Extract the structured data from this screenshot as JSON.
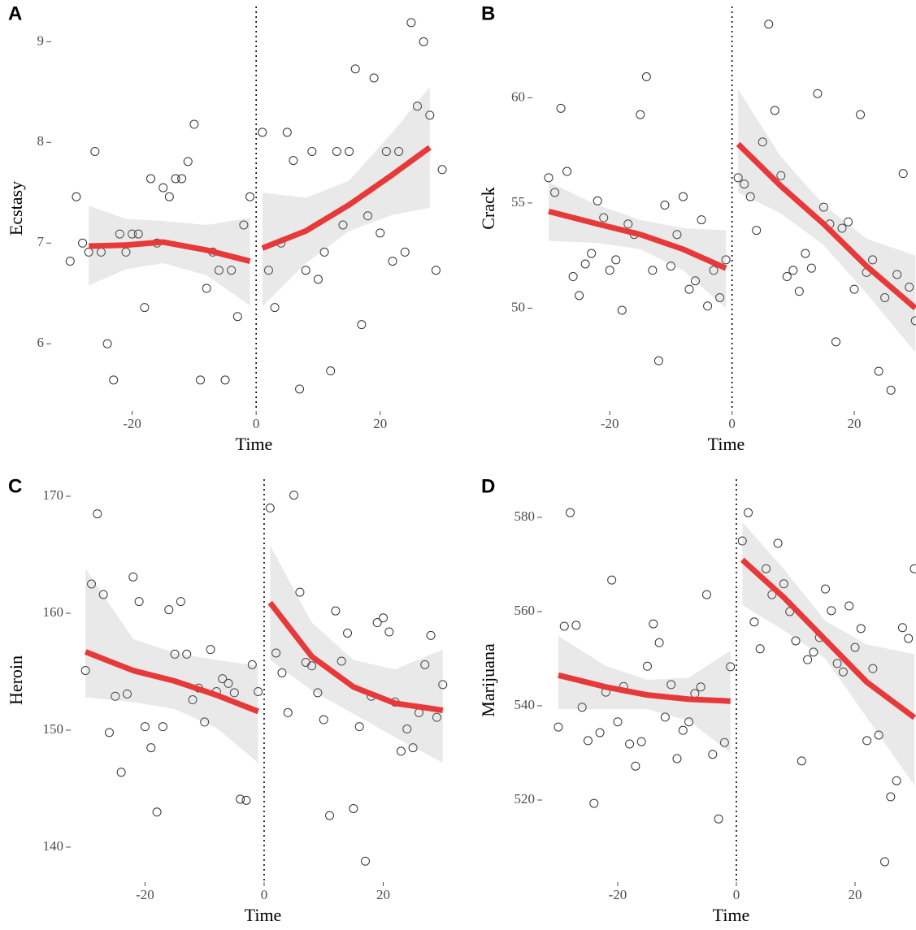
{
  "chart_data": [
    {
      "type": "scatter",
      "panel_label": "A",
      "ylabel": "Ecstasy",
      "xlabel": "Time",
      "x": [
        -30,
        -29,
        -28,
        -27,
        -26,
        -25,
        -24,
        -23,
        -22,
        -21,
        -20,
        -19,
        -18,
        -17,
        -16,
        -15,
        -14,
        -13,
        -12,
        -11,
        -10,
        -9,
        -8,
        -7,
        -6,
        -5,
        -4,
        -3,
        -2,
        -1,
        1,
        2,
        3,
        4,
        5,
        6,
        7,
        8,
        9,
        10,
        11,
        12,
        13,
        14,
        15,
        16,
        17,
        18,
        19,
        20,
        21,
        22,
        23,
        24,
        25,
        26,
        27,
        28,
        29,
        30
      ],
      "values": [
        6.82,
        7.46,
        7.0,
        6.91,
        7.91,
        6.91,
        6.0,
        5.64,
        7.09,
        6.91,
        7.09,
        7.09,
        6.36,
        7.64,
        7.0,
        7.55,
        7.46,
        7.64,
        7.64,
        7.81,
        8.18,
        5.64,
        6.55,
        6.91,
        6.73,
        5.64,
        6.73,
        6.27,
        7.18,
        7.46,
        8.1,
        6.73,
        6.36,
        7.0,
        8.1,
        7.82,
        5.55,
        6.73,
        7.91,
        6.64,
        6.91,
        5.73,
        7.91,
        7.18,
        7.91,
        8.73,
        6.19,
        7.27,
        8.64,
        7.1,
        7.91,
        6.82,
        7.91,
        6.91,
        9.19,
        8.36,
        9.0,
        8.27,
        6.73,
        7.73
      ],
      "fits": [
        {
          "x": [
            -27,
            -21,
            -15,
            -8,
            -1
          ],
          "values": [
            6.97,
            6.98,
            7.01,
            6.93,
            6.82
          ],
          "upper": [
            7.37,
            7.24,
            7.22,
            7.18,
            7.25
          ],
          "lower": [
            6.58,
            6.74,
            6.8,
            6.68,
            6.38
          ]
        },
        {
          "x": [
            1,
            8,
            15,
            22,
            28
          ],
          "values": [
            6.95,
            7.12,
            7.38,
            7.68,
            7.95
          ],
          "upper": [
            7.5,
            7.45,
            7.62,
            8.1,
            8.55
          ],
          "lower": [
            6.37,
            6.8,
            7.12,
            7.28,
            7.35
          ]
        }
      ],
      "xlim": [
        -32.4,
        31.7
      ],
      "ylim": [
        5.34,
        9.35
      ],
      "xticks": [
        -20,
        0,
        20
      ],
      "yticks": [
        6,
        7,
        8,
        9
      ],
      "vline": 0,
      "point_color": "#333333",
      "fit_color": "#e8393a"
    },
    {
      "type": "scatter",
      "panel_label": "B",
      "ylabel": "Crack",
      "xlabel": "Time",
      "x": [
        -30,
        -29,
        -28,
        -27,
        -26,
        -25,
        -24,
        -23,
        -22,
        -21,
        -20,
        -19,
        -18,
        -17,
        -16,
        -15,
        -14,
        -13,
        -12,
        -11,
        -10,
        -9,
        -8,
        -7,
        -6,
        -5,
        -4,
        -3,
        -2,
        -1,
        1,
        2,
        3,
        4,
        5,
        6,
        7,
        8,
        9,
        10,
        11,
        12,
        13,
        14,
        15,
        16,
        17,
        18,
        19,
        20,
        21,
        22,
        23,
        24,
        25,
        26,
        27,
        28,
        29,
        30
      ],
      "values": [
        56.2,
        55.5,
        59.5,
        56.5,
        51.5,
        50.6,
        52.1,
        52.6,
        55.1,
        54.3,
        51.8,
        52.3,
        49.9,
        54.0,
        53.5,
        59.2,
        61.0,
        51.8,
        47.5,
        54.9,
        52.0,
        53.5,
        55.3,
        50.9,
        51.3,
        54.2,
        50.1,
        51.8,
        50.5,
        52.3,
        56.2,
        55.9,
        55.3,
        53.7,
        57.9,
        63.5,
        59.4,
        56.3,
        51.5,
        51.8,
        50.8,
        52.6,
        51.9,
        60.2,
        54.8,
        54.0,
        48.4,
        53.8,
        54.1,
        50.9,
        59.2,
        51.7,
        52.3,
        47.0,
        50.5,
        46.1,
        51.6,
        56.4,
        51.0,
        49.4
      ],
      "fits": [
        {
          "x": [
            -30,
            -22,
            -15,
            -8,
            -1
          ],
          "values": [
            54.6,
            54.0,
            53.5,
            52.8,
            51.9
          ],
          "upper": [
            56.0,
            54.9,
            54.2,
            53.8,
            53.7
          ],
          "lower": [
            53.2,
            53.1,
            52.8,
            51.8,
            50.0
          ]
        },
        {
          "x": [
            1,
            8,
            15,
            22,
            30
          ],
          "values": [
            57.8,
            55.8,
            54.0,
            52.0,
            50.0
          ],
          "upper": [
            60.4,
            57.2,
            54.9,
            53.3,
            52.5
          ],
          "lower": [
            55.5,
            54.5,
            53.0,
            50.7,
            47.9
          ]
        }
      ],
      "xlim": [
        -32.0,
        30.1
      ],
      "ylim": [
        45.15,
        64.34
      ],
      "xticks": [
        -20,
        0,
        20
      ],
      "yticks": [
        50,
        55,
        60
      ],
      "vline": 0,
      "point_color": "#333333",
      "fit_color": "#e8393a"
    },
    {
      "type": "scatter",
      "panel_label": "C",
      "ylabel": "Heroin",
      "xlabel": "Time",
      "x": [
        -30,
        -29,
        -28,
        -27,
        -26,
        -25,
        -24,
        -23,
        -22,
        -21,
        -20,
        -19,
        -18,
        -17,
        -16,
        -15,
        -14,
        -13,
        -12,
        -11,
        -10,
        -9,
        -8,
        -7,
        -6,
        -5,
        -4,
        -3,
        -2,
        -1,
        1,
        2,
        3,
        4,
        5,
        6,
        7,
        8,
        9,
        10,
        11,
        12,
        13,
        14,
        15,
        16,
        17,
        18,
        19,
        20,
        21,
        22,
        23,
        24,
        25,
        26,
        27,
        28,
        29,
        30
      ],
      "values": [
        155.1,
        162.5,
        168.5,
        161.6,
        149.8,
        152.9,
        146.4,
        153.1,
        163.1,
        161.0,
        150.3,
        148.5,
        143.0,
        150.3,
        160.3,
        156.5,
        161.0,
        156.5,
        152.6,
        153.6,
        150.7,
        156.9,
        153.3,
        154.4,
        154.0,
        153.2,
        144.1,
        144.0,
        155.6,
        153.3,
        169.0,
        156.6,
        154.9,
        151.5,
        170.1,
        161.8,
        155.8,
        155.5,
        153.2,
        150.9,
        142.7,
        160.2,
        155.9,
        158.3,
        143.3,
        150.3,
        138.8,
        152.9,
        159.2,
        159.6,
        158.4,
        152.4,
        148.2,
        150.1,
        148.5,
        151.5,
        155.6,
        158.1,
        151.1,
        153.9
      ],
      "fits": [
        {
          "x": [
            -30,
            -22,
            -15,
            -8,
            -1
          ],
          "values": [
            156.7,
            155.1,
            154.2,
            153.0,
            151.6
          ],
          "upper": [
            163.8,
            157.8,
            156.6,
            156.0,
            155.5
          ],
          "lower": [
            152.8,
            152.4,
            151.8,
            150.2,
            147.2
          ]
        },
        {
          "x": [
            1,
            8,
            15,
            22,
            30
          ],
          "values": [
            160.9,
            156.3,
            153.7,
            152.3,
            151.7
          ],
          "upper": [
            165.8,
            159.2,
            156.0,
            155.2,
            156.9
          ],
          "lower": [
            156.0,
            153.4,
            151.4,
            149.4,
            147.2
          ]
        }
      ],
      "xlim": [
        -31.8,
        31.4
      ],
      "ylim": [
        137.08,
        171.46
      ],
      "xticks": [
        -20,
        0,
        20
      ],
      "yticks": [
        140,
        150,
        160,
        170
      ],
      "vline": 0,
      "point_color": "#333333",
      "fit_color": "#e8393a"
    },
    {
      "type": "scatter",
      "panel_label": "D",
      "ylabel": "Marijuana",
      "xlabel": "Time",
      "x": [
        -30,
        -29,
        -28,
        -27,
        -26,
        -25,
        -24,
        -23,
        -22,
        -21,
        -20,
        -19,
        -18,
        -17,
        -16,
        -15,
        -14,
        -13,
        -12,
        -11,
        -10,
        -9,
        -8,
        -7,
        -6,
        -5,
        -4,
        -3,
        -2,
        -1,
        1,
        2,
        3,
        4,
        5,
        6,
        7,
        8,
        9,
        10,
        11,
        12,
        13,
        14,
        15,
        16,
        17,
        18,
        19,
        20,
        21,
        22,
        23,
        24,
        25,
        26,
        27,
        28,
        29,
        30
      ],
      "values": [
        535.5,
        556.9,
        581.0,
        557.1,
        539.7,
        532.6,
        519.3,
        534.3,
        542.9,
        566.7,
        536.6,
        544.1,
        531.9,
        527.2,
        532.4,
        548.4,
        557.4,
        553.4,
        537.6,
        544.5,
        528.8,
        534.8,
        536.6,
        542.6,
        544.0,
        563.6,
        529.7,
        516.0,
        532.2,
        548.3,
        575.0,
        581.0,
        557.8,
        552.1,
        569.1,
        563.6,
        574.5,
        565.9,
        560.0,
        553.8,
        528.3,
        549.8,
        551.4,
        554.5,
        564.8,
        560.2,
        549.0,
        547.2,
        561.2,
        552.4,
        556.4,
        532.6,
        547.9,
        533.8,
        506.9,
        520.7,
        524.1,
        556.6,
        554.3,
        569.1
      ],
      "fits": [
        {
          "x": [
            -30,
            -22,
            -15,
            -8,
            -1
          ],
          "values": [
            546.5,
            544.0,
            542.3,
            541.4,
            541.0
          ],
          "upper": [
            554.8,
            548.5,
            545.5,
            546.0,
            551.7
          ],
          "lower": [
            539.3,
            539.3,
            539.3,
            536.8,
            530.0
          ]
        },
        {
          "x": [
            1,
            8,
            15,
            22,
            30
          ],
          "values": [
            571,
            563,
            554,
            545,
            537.5
          ],
          "upper": [
            579,
            569,
            558,
            553,
            551
          ],
          "lower": [
            561.4,
            556,
            550,
            537.5,
            523.1
          ]
        }
      ],
      "xlim": [
        -32.05,
        30.27
      ],
      "ylim": [
        502.76,
        588.1
      ],
      "xticks": [
        -20,
        0,
        20
      ],
      "yticks": [
        520,
        540,
        560,
        580
      ],
      "vline": 0,
      "point_color": "#333333",
      "fit_color": "#e8393a"
    }
  ]
}
